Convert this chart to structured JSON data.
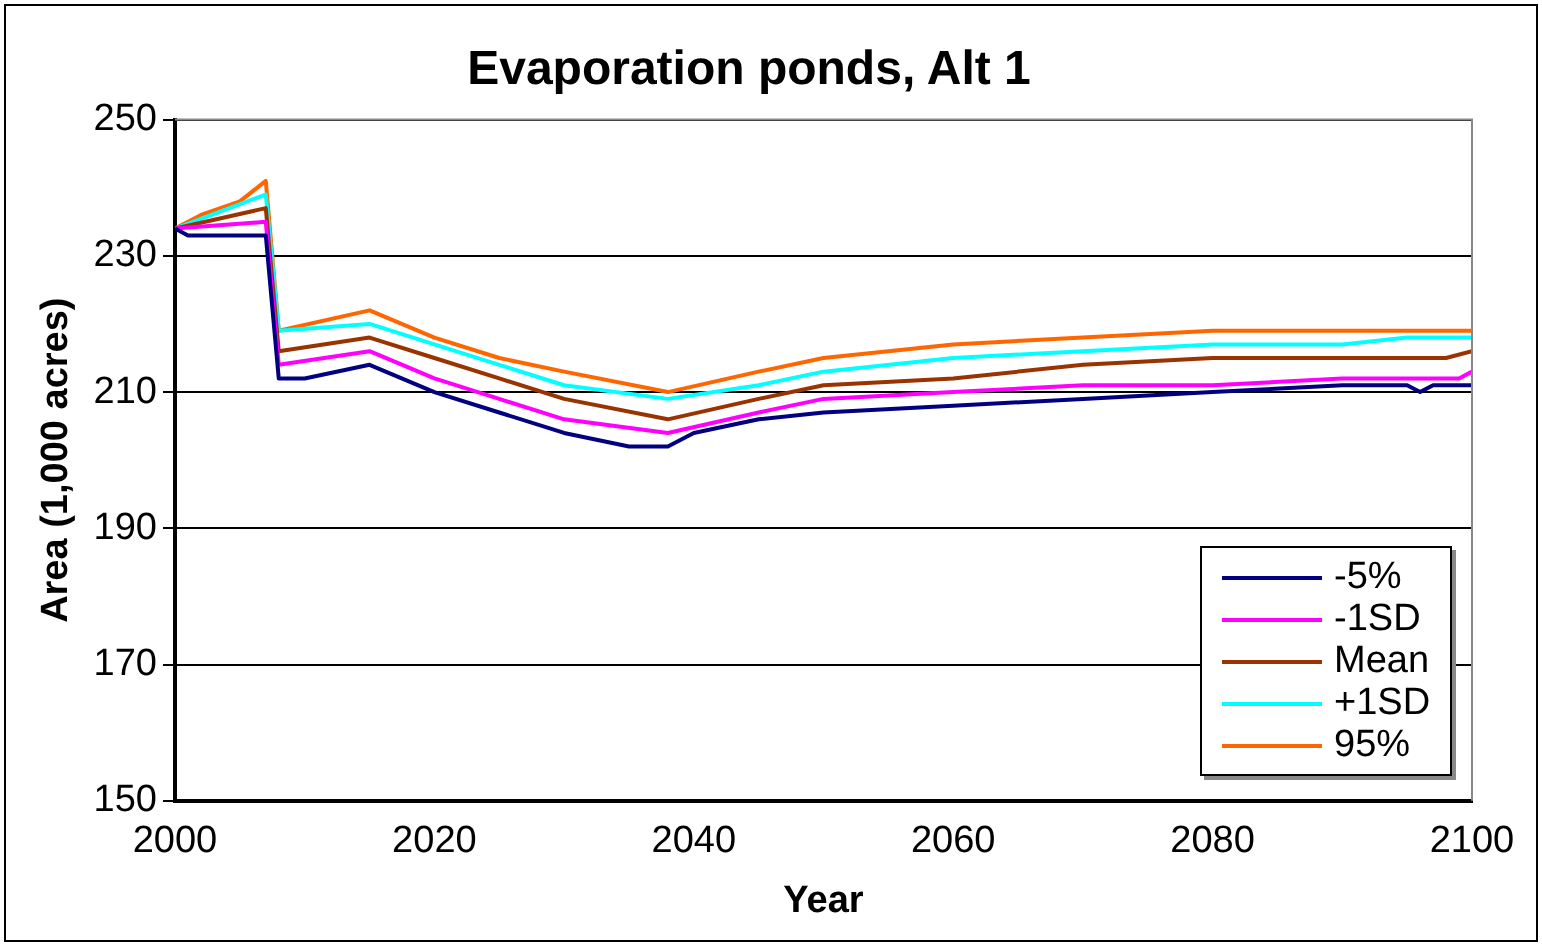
{
  "chart_data": {
    "type": "line",
    "title": "Evaporation ponds, Alt 1",
    "xlabel": "Year",
    "ylabel": "Area (1,000 acres)",
    "xlim": [
      2000,
      2100
    ],
    "xticks": [
      2000,
      2020,
      2040,
      2060,
      2080,
      2100
    ],
    "ylim": [
      150,
      250
    ],
    "yticks": [
      150,
      170,
      190,
      210,
      230,
      250
    ],
    "grid": "y",
    "legend": "bottom right",
    "marker": "none",
    "series": [
      {
        "name": "-5%",
        "color": "#000080",
        "x": [
          2000,
          2001,
          2007,
          2008,
          2010,
          2015,
          2020,
          2025,
          2030,
          2035,
          2038,
          2040,
          2045,
          2050,
          2060,
          2070,
          2080,
          2090,
          2095,
          2096,
          2097,
          2100
        ],
        "values": [
          234,
          233,
          233,
          212,
          212,
          214,
          210,
          207,
          204,
          202,
          202,
          204,
          206,
          207,
          208,
          209,
          210,
          211,
          211,
          210,
          211,
          211
        ]
      },
      {
        "name": "-1SD",
        "color": "#ff00ff",
        "x": [
          2000,
          2007,
          2008,
          2015,
          2020,
          2025,
          2030,
          2038,
          2045,
          2050,
          2060,
          2070,
          2080,
          2090,
          2099,
          2100
        ],
        "values": [
          234,
          235,
          214,
          216,
          212,
          209,
          206,
          204,
          207,
          209,
          210,
          211,
          211,
          212,
          212,
          213
        ]
      },
      {
        "name": "Mean",
        "color": "#993300",
        "x": [
          2000,
          2007,
          2008,
          2015,
          2020,
          2025,
          2030,
          2038,
          2045,
          2050,
          2060,
          2070,
          2080,
          2090,
          2098,
          2100
        ],
        "values": [
          234,
          237,
          216,
          218,
          215,
          212,
          209,
          206,
          209,
          211,
          212,
          214,
          215,
          215,
          215,
          216
        ]
      },
      {
        "name": "+1SD",
        "color": "#00ffff",
        "x": [
          2000,
          2007,
          2008,
          2015,
          2020,
          2025,
          2030,
          2038,
          2045,
          2050,
          2060,
          2070,
          2080,
          2090,
          2095,
          2100
        ],
        "values": [
          234,
          239,
          219,
          220,
          217,
          214,
          211,
          209,
          211,
          213,
          215,
          216,
          217,
          217,
          218,
          218
        ]
      },
      {
        "name": "95%",
        "color": "#ff6600",
        "x": [
          2000,
          2002,
          2005,
          2007,
          2008,
          2015,
          2020,
          2025,
          2030,
          2038,
          2045,
          2050,
          2060,
          2070,
          2080,
          2090,
          2100
        ],
        "values": [
          234,
          236,
          238,
          241,
          219,
          222,
          218,
          215,
          213,
          210,
          213,
          215,
          217,
          218,
          219,
          219,
          219
        ]
      }
    ]
  }
}
